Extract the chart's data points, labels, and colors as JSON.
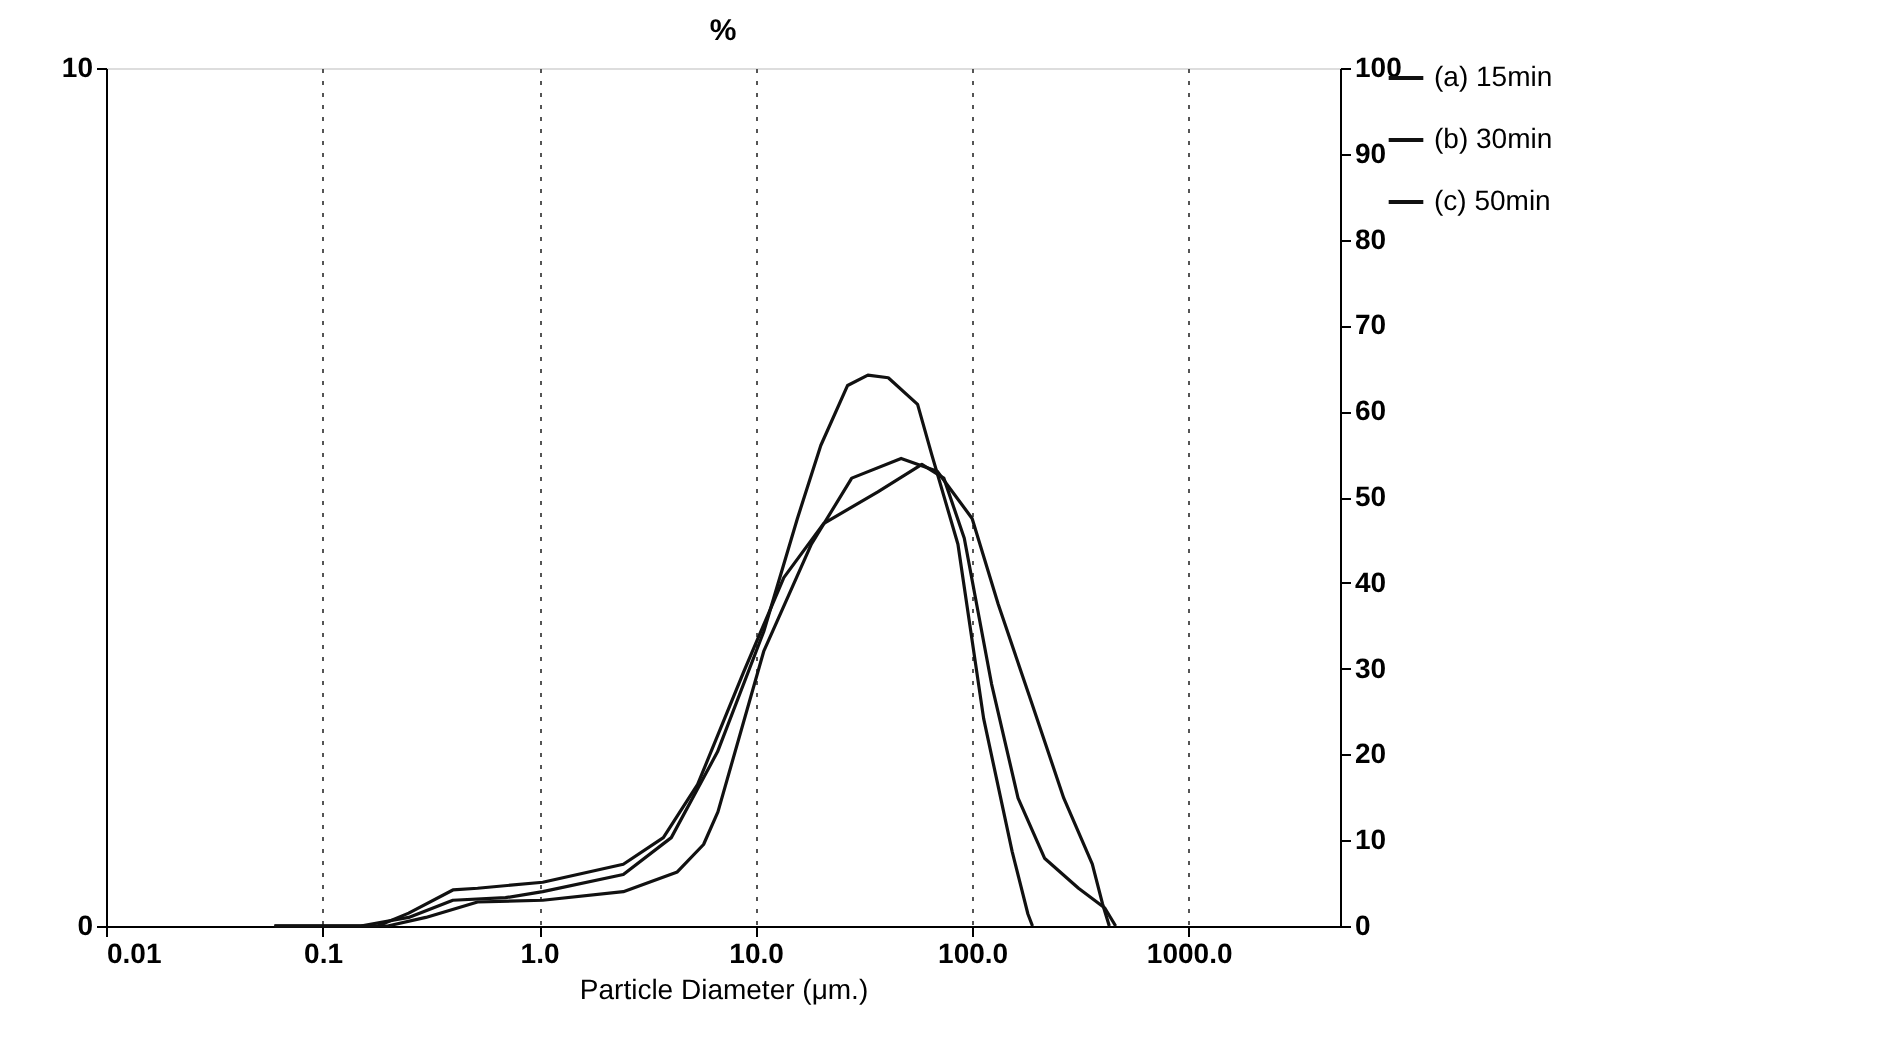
{
  "chart_data": {
    "type": "line",
    "title": "%",
    "xlabel": "Particle Diameter (μm.)",
    "log": "x",
    "xlim": [
      0.01,
      5000
    ],
    "xticks": [
      0.01,
      0.1,
      {
        "value": 1,
        "label": "1.0"
      },
      {
        "value": 10,
        "label": "10.0"
      },
      {
        "value": 100,
        "label": "100.0"
      },
      {
        "value": 1000,
        "label": "1000.0"
      }
    ],
    "ylim": [
      0,
      10
    ],
    "yticks": [
      0,
      10
    ],
    "y2lim": [
      0,
      100
    ],
    "y2ticks": [
      0,
      10,
      20,
      30,
      40,
      50,
      60,
      70,
      80,
      90,
      100
    ],
    "grid": "x",
    "legend": "top right",
    "marker": "none",
    "line_style": "solid",
    "series": [
      {
        "name": "(a) 15min",
        "color": "#111111",
        "x": [
          0.06,
          0.15,
          0.25,
          0.4,
          0.7,
          1.04,
          2.45,
          4.08,
          6.67,
          10.9,
          15.6,
          20,
          26.6,
          33,
          41,
          56,
          65,
          86,
          113,
          153,
          181,
          190
        ],
        "values": [
          0,
          0,
          0.1,
          0.3,
          0.33,
          0.4,
          0.6,
          1.03,
          2.03,
          3.43,
          4.75,
          5.6,
          6.3,
          6.42,
          6.39,
          6.08,
          5.5,
          4.45,
          2.42,
          0.87,
          0.14,
          0
        ]
      },
      {
        "name": "(b) 30min",
        "color": "#111111",
        "x": [
          0.06,
          0.2,
          0.3,
          0.52,
          1.04,
          2.45,
          4.35,
          5.75,
          6.7,
          10.9,
          18.1,
          27.8,
          47,
          69,
          100,
          132,
          189,
          265,
          359,
          400,
          430
        ],
        "values": [
          0,
          0,
          0.1,
          0.28,
          0.3,
          0.4,
          0.63,
          0.95,
          1.33,
          3.2,
          4.45,
          5.22,
          5.45,
          5.3,
          4.75,
          3.75,
          2.59,
          1.49,
          0.72,
          0.26,
          0
        ]
      },
      {
        "name": "(c) 50min",
        "color": "#111111",
        "x": [
          0.06,
          0.18,
          0.25,
          0.4,
          0.52,
          1.04,
          2.45,
          3.75,
          5.4,
          8.8,
          13.5,
          20.6,
          36.7,
          58.6,
          74,
          92,
          123,
          163,
          216,
          310,
          410,
          460
        ],
        "values": [
          0,
          0,
          0.15,
          0.42,
          0.44,
          0.51,
          0.72,
          1.03,
          1.65,
          2.96,
          4.06,
          4.69,
          5.06,
          5.38,
          5.22,
          4.52,
          2.82,
          1.49,
          0.79,
          0.44,
          0.21,
          0
        ]
      }
    ]
  }
}
